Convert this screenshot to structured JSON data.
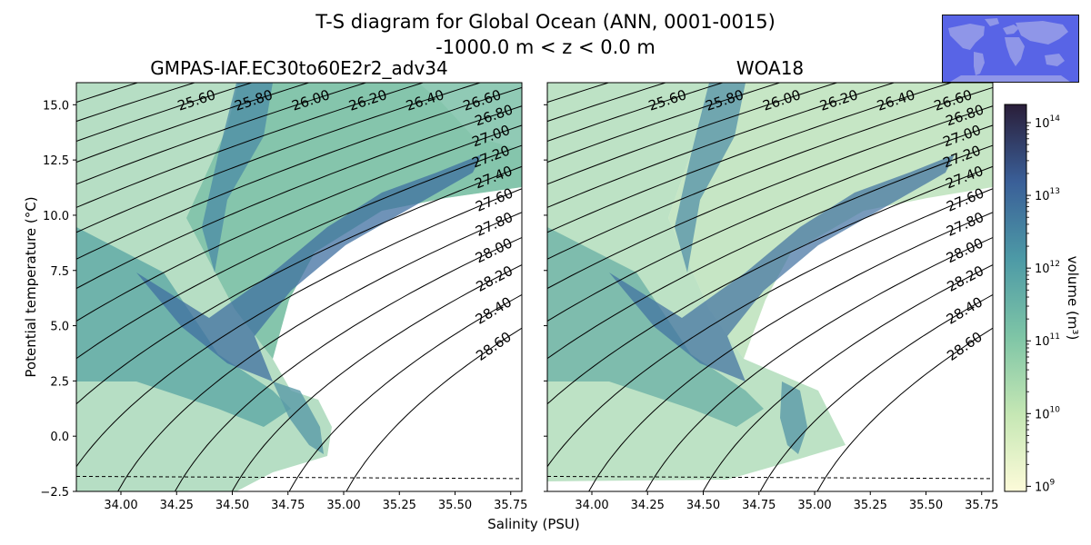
{
  "figure": {
    "title_line1": "T-S diagram for Global Ocean (ANN, 0001-0015)",
    "title_line2": "-1000.0 m < z < 0.0 m"
  },
  "colors": {
    "background": "#ffffff",
    "contour": "#000000",
    "cmap_low": "#fdfbd9",
    "cmap_mid": "#4d9aa6",
    "cmap_high": "#2a1e39",
    "map_ocean": "#5864e6",
    "map_land": "#8f96e8"
  },
  "icons": {
    "map_inset": "world-map-icon"
  },
  "chart_data": [
    {
      "type": "heatmap",
      "title": "GMPAS-IAF.EC30to60E2r2_adv34",
      "xlabel": "Salinity (PSU)",
      "ylabel": "Potential temperature (°C)",
      "xlim": [
        33.8,
        35.8
      ],
      "ylim": [
        -2.5,
        16.0
      ],
      "xticks": [
        "34.00",
        "34.25",
        "34.50",
        "34.75",
        "35.00",
        "35.25",
        "35.50",
        "35.75"
      ],
      "yticks": [
        "−2.5",
        "0.0",
        "2.5",
        "5.0",
        "7.5",
        "10.0",
        "12.5",
        "15.0"
      ],
      "freezing_line": "dashed, about -1.85 °C",
      "density_contours": [
        "25.20",
        "25.40",
        "25.60",
        "25.80",
        "26.00",
        "26.20",
        "26.40",
        "26.60",
        "26.80",
        "27.00",
        "27.20",
        "27.40",
        "27.60",
        "27.80",
        "28.00",
        "28.20",
        "28.40",
        "28.60"
      ],
      "grid": false
    },
    {
      "type": "heatmap",
      "title": "WOA18",
      "xlabel": "Salinity (PSU)",
      "ylabel": "",
      "xlim": [
        33.8,
        35.8
      ],
      "ylim": [
        -2.5,
        16.0
      ],
      "xticks": [
        "34.00",
        "34.25",
        "34.50",
        "34.75",
        "35.00",
        "35.25",
        "35.50",
        "35.75"
      ],
      "yticks": [],
      "freezing_line": "dashed, about -1.85 °C",
      "density_contours": [
        "25.20",
        "25.40",
        "25.60",
        "25.80",
        "26.00",
        "26.20",
        "26.40",
        "26.60",
        "26.80",
        "27.00",
        "27.20",
        "27.40",
        "27.60",
        "27.80",
        "28.00",
        "28.20",
        "28.40",
        "28.60"
      ],
      "grid": false
    }
  ],
  "colorbar": {
    "label": "volume (m³)",
    "scale": "log",
    "range": [
      "10^9",
      "10^14"
    ],
    "ticks": [
      9,
      10,
      11,
      12,
      13,
      14
    ]
  }
}
